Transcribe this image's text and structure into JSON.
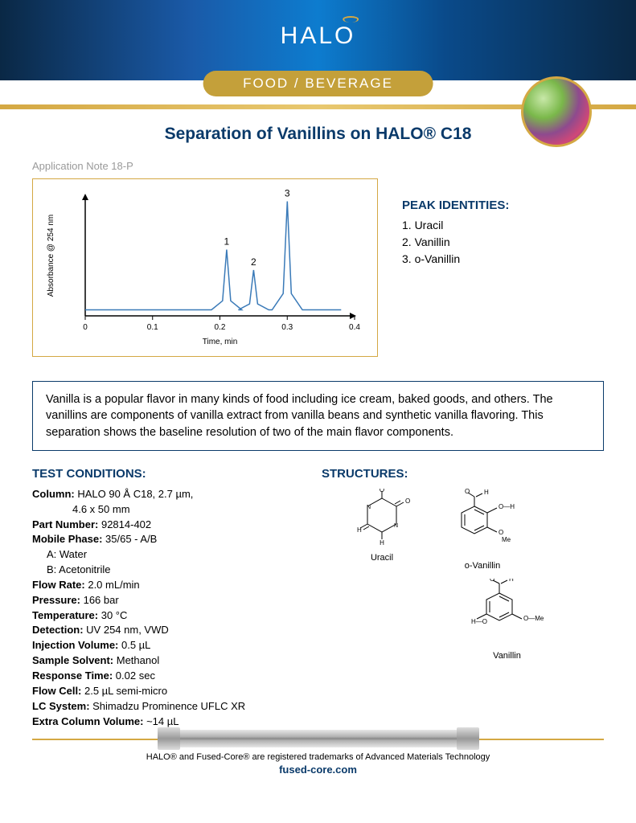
{
  "brand": "HALO",
  "category": "FOOD / BEVERAGE",
  "title": "Separation of Vanillins on HALO® C18",
  "app_note": "Application Note 18-P",
  "chart": {
    "type": "line",
    "xlabel": "Time, min",
    "ylabel": "Absorbance @ 254 nm",
    "xlim": [
      0,
      0.4
    ],
    "xtick_step": 0.1,
    "xticks": [
      "0",
      "0.1",
      "0.2",
      "0.3",
      "0.4"
    ],
    "label_fontsize": 10,
    "line_color": "#3a7ab8",
    "axis_color": "#000000",
    "background_color": "#ffffff",
    "peaks": [
      {
        "label": "1",
        "x": 0.21,
        "height": 0.55
      },
      {
        "label": "2",
        "x": 0.25,
        "height": 0.38
      },
      {
        "label": "3",
        "x": 0.3,
        "height": 0.95
      }
    ],
    "baseline_y": 0.05,
    "peak_width": 0.015
  },
  "peak_identities": {
    "heading": "PEAK IDENTITIES:",
    "items": [
      "1. Uracil",
      "2. Vanillin",
      "3. o-Vanillin"
    ]
  },
  "description": "Vanilla is a popular flavor in many kinds of food including ice cream, baked goods, and others. The vanillins are components of vanilla extract from vanilla beans and synthetic vanilla flavoring. This separation shows the baseline resolution of two of the main flavor components.",
  "conditions": {
    "heading": "TEST CONDITIONS:",
    "rows": [
      {
        "label": "Column:",
        "value": "HALO 90 Å C18, 2.7 µm,"
      },
      {
        "label": "",
        "value": "4.6 x 50 mm",
        "indent": 1
      },
      {
        "label": "Part Number:",
        "value": "92814-402"
      },
      {
        "label": "Mobile Phase:",
        "value": "35/65 - A/B"
      },
      {
        "label": "",
        "value": "A: Water",
        "indent": 2
      },
      {
        "label": "",
        "value": "B: Acetonitrile",
        "indent": 2
      },
      {
        "label": "Flow Rate:",
        "value": "2.0 mL/min"
      },
      {
        "label": "Pressure:",
        "value": "166 bar"
      },
      {
        "label": "Temperature:",
        "value": "30 °C"
      },
      {
        "label": "Detection:",
        "value": "UV 254 nm, VWD"
      },
      {
        "label": "Injection Volume:",
        "value": "0.5 µL"
      },
      {
        "label": "Sample Solvent:",
        "value": "Methanol"
      },
      {
        "label": "Response Time:",
        "value": "0.02 sec"
      },
      {
        "label": "Flow Cell:",
        "value": "2.5 µL semi-micro"
      },
      {
        "label": "LC System:",
        "value": "Shimadzu Prominence UFLC XR"
      },
      {
        "label": "Extra Column Volume:",
        "value": "~14 µL"
      }
    ]
  },
  "structures": {
    "heading": "STRUCTURES:",
    "items": [
      "Uracil",
      "o-Vanillin",
      "Vanillin"
    ]
  },
  "footer": {
    "trademark": "HALO® and Fused-Core® are registered trademarks of Advanced Materials Technology",
    "link": "fused-core.com"
  },
  "colors": {
    "brand_blue": "#0a3a6a",
    "gold": "#d4a843",
    "chart_line": "#3a7ab8",
    "grey_text": "#9a9a9a"
  }
}
